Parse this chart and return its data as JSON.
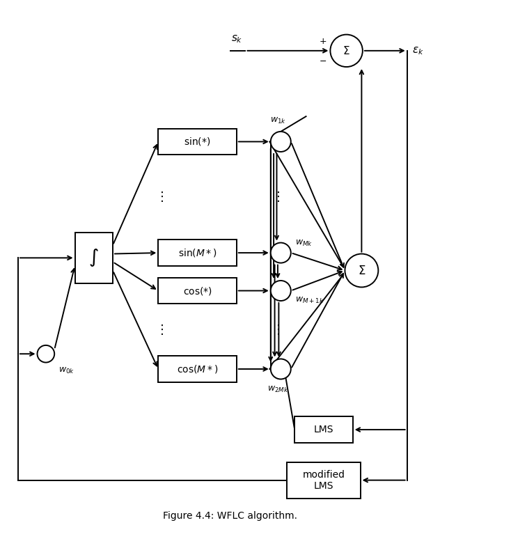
{
  "bg_color": "#ffffff",
  "box_color": "#ffffff",
  "box_edge": "#000000",
  "arrow_color": "#000000",
  "text_color": "#000000",
  "fig_width": 7.34,
  "fig_height": 7.77,
  "title": "Figure 4.4: WFLC algorithm.",
  "xlim": [
    0,
    10
  ],
  "ylim": [
    0,
    10.5
  ]
}
